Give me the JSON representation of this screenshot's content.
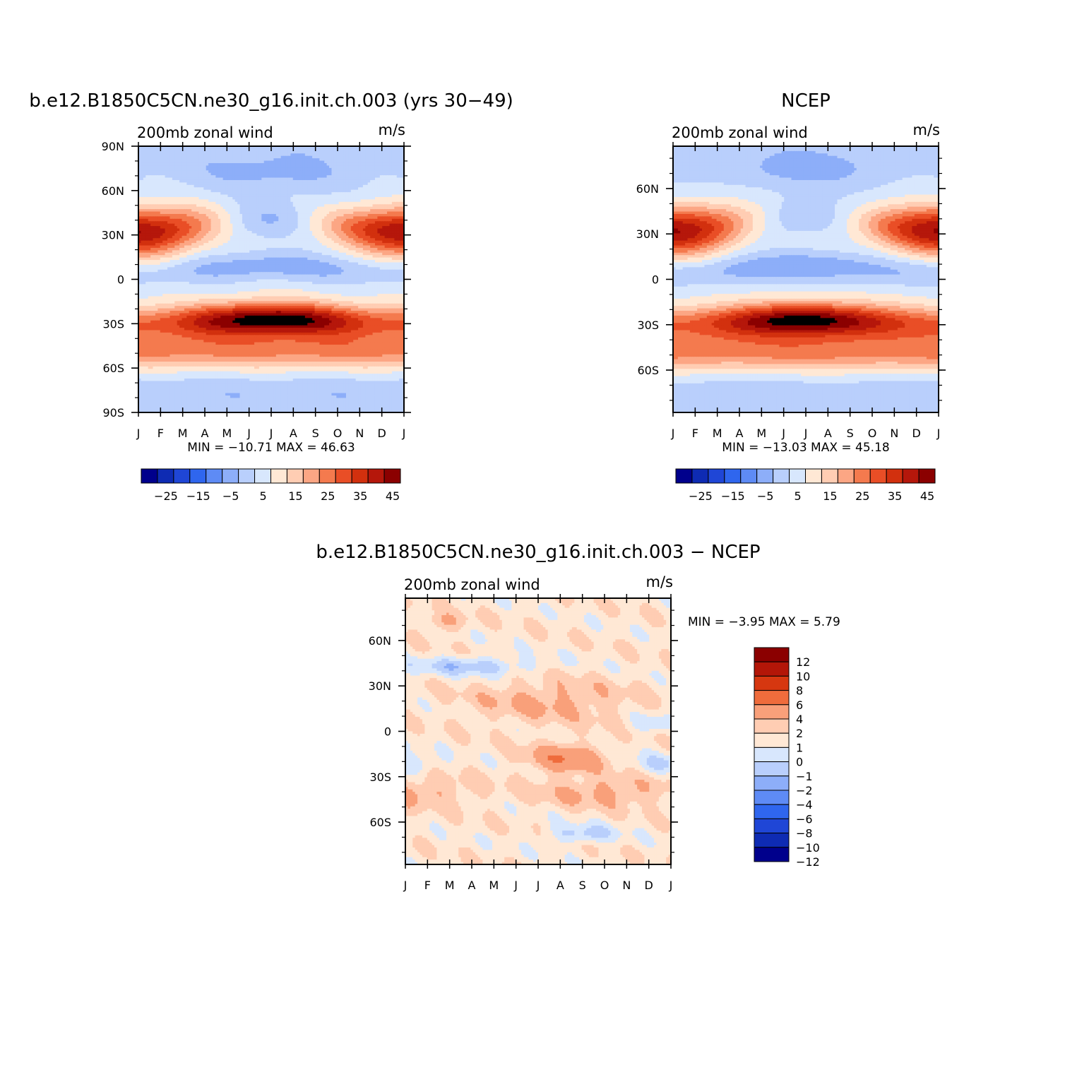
{
  "colors": {
    "cb15": [
      "#00008c",
      "#0e2bb3",
      "#1f46d6",
      "#2f66ee",
      "#5e8bf5",
      "#8daef9",
      "#b9cffc",
      "#d8e7fd",
      "#ffe8d5",
      "#ffcdb3",
      "#fca684",
      "#f47a4e",
      "#e94e26",
      "#d2300e",
      "#b5170b",
      "#8b0000"
    ],
    "cb14": [
      "#00008c",
      "#0e2bb3",
      "#1f46d6",
      "#2f66ee",
      "#5e8bf5",
      "#8daef9",
      "#b9cffc",
      "#d8e7fd",
      "#ffe8d5",
      "#ffcdb3",
      "#f9a07a",
      "#ef6c3c",
      "#d63710",
      "#b31608",
      "#8b0000"
    ]
  },
  "chart_data": [
    {
      "id": "model",
      "type": "contour",
      "title": "b.e12.B1850C5CN.ne30_g16.init.ch.003 (yrs 30-49)",
      "subtitle_left": "200mb zonal wind",
      "subtitle_right": "m/s",
      "x_ticks": [
        "J",
        "F",
        "M",
        "A",
        "M",
        "J",
        "J",
        "A",
        "S",
        "O",
        "N",
        "D",
        "J"
      ],
      "y_ticks": [
        "90N",
        "60N",
        "30N",
        "0",
        "30S",
        "60S",
        "90S"
      ],
      "ylim": [
        -90,
        90
      ],
      "minmax": "MIN = -10.71 MAX =  46.63",
      "min": -10.71,
      "max": 46.63,
      "levels": [
        -30,
        -25,
        -20,
        -15,
        -10,
        -5,
        0,
        5,
        10,
        15,
        20,
        25,
        30,
        35,
        40,
        45
      ],
      "colorbar_labels": [
        "-25",
        "-15",
        "-5",
        "5",
        "15",
        "25",
        "35",
        "45"
      ]
    },
    {
      "id": "ncep",
      "type": "contour",
      "title": "NCEP",
      "subtitle_left": "200mb zonal wind",
      "subtitle_right": "m/s",
      "x_ticks": [
        "J",
        "F",
        "M",
        "A",
        "M",
        "J",
        "J",
        "A",
        "S",
        "O",
        "N",
        "D",
        "J"
      ],
      "y_ticks": [
        "60N",
        "30N",
        "0",
        "30S",
        "60S"
      ],
      "ylim": [
        -88,
        88
      ],
      "minmax": "MIN = -13.03 MAX =  45.18",
      "min": -13.03,
      "max": 45.18,
      "levels": [
        -30,
        -25,
        -20,
        -15,
        -10,
        -5,
        0,
        5,
        10,
        15,
        20,
        25,
        30,
        35,
        40,
        45
      ],
      "colorbar_labels": [
        "-25",
        "-15",
        "-5",
        "5",
        "15",
        "25",
        "35",
        "45"
      ]
    },
    {
      "id": "diff",
      "type": "contour",
      "title": "b.e12.B1850C5CN.ne30_g16.init.ch.003 - NCEP",
      "subtitle_left": "200mb zonal wind",
      "subtitle_right": "m/s",
      "x_ticks": [
        "J",
        "F",
        "M",
        "A",
        "M",
        "J",
        "J",
        "A",
        "S",
        "O",
        "N",
        "D",
        "J"
      ],
      "y_ticks": [
        "60N",
        "30N",
        "0",
        "30S",
        "60S"
      ],
      "ylim": [
        -88,
        88
      ],
      "minmax": "MIN =   -3.95 MAX =    5.79",
      "min": -3.95,
      "max": 5.79,
      "levels": [
        -12,
        -10,
        -8,
        -6,
        -4,
        -2,
        -1,
        0,
        1,
        2,
        4,
        6,
        8,
        10,
        12
      ],
      "colorbar_labels": [
        "12",
        "10",
        "8",
        "6",
        "4",
        "2",
        "1",
        "0",
        "-1",
        "-2",
        "-4",
        "-6",
        "-8",
        "-10",
        "-12"
      ]
    }
  ]
}
